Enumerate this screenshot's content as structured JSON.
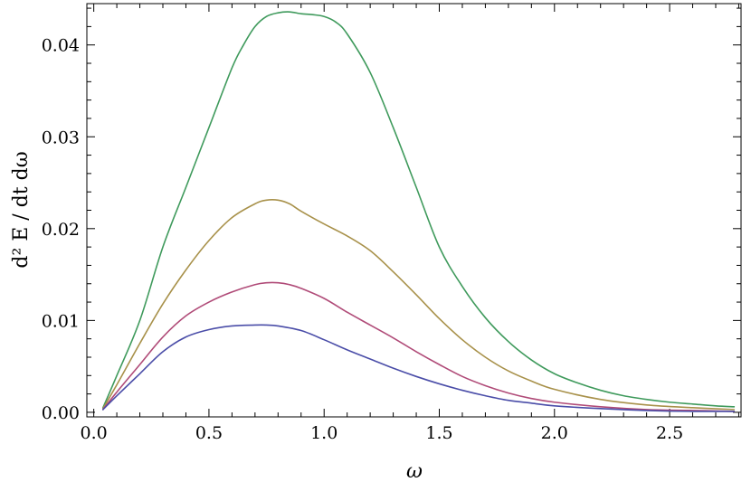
{
  "chart_data": {
    "type": "line",
    "xlabel": "ω",
    "ylabel": "d² E / dt dω",
    "xlim": [
      -0.03,
      2.81
    ],
    "ylim": [
      -0.0005,
      0.0445
    ],
    "xticks": [
      {
        "v": 0.0,
        "label": "0.0"
      },
      {
        "v": 0.5,
        "label": "0.5"
      },
      {
        "v": 1.0,
        "label": "1.0"
      },
      {
        "v": 1.5,
        "label": "1.5"
      },
      {
        "v": 2.0,
        "label": "2.0"
      },
      {
        "v": 2.5,
        "label": "2.5"
      }
    ],
    "yticks": [
      {
        "v": 0.0,
        "label": "0.00"
      },
      {
        "v": 0.01,
        "label": "0.01"
      },
      {
        "v": 0.02,
        "label": "0.02"
      },
      {
        "v": 0.03,
        "label": "0.03"
      },
      {
        "v": 0.04,
        "label": "0.04"
      }
    ],
    "grid": false,
    "series": [
      {
        "color": "#3f9a5c",
        "x": [
          0.04,
          0.1,
          0.2,
          0.3,
          0.4,
          0.5,
          0.6,
          0.65,
          0.7,
          0.75,
          0.8,
          0.85,
          0.9,
          0.95,
          1.0,
          1.05,
          1.1,
          1.2,
          1.3,
          1.4,
          1.5,
          1.6,
          1.7,
          1.8,
          1.9,
          2.0,
          2.1,
          2.2,
          2.3,
          2.4,
          2.5,
          2.6,
          2.7,
          2.78
        ],
        "y": [
          0.0005,
          0.004,
          0.01,
          0.018,
          0.0245,
          0.031,
          0.0375,
          0.04,
          0.042,
          0.0431,
          0.0435,
          0.0436,
          0.0434,
          0.0433,
          0.0431,
          0.0425,
          0.0412,
          0.037,
          0.031,
          0.0245,
          0.018,
          0.0137,
          0.0103,
          0.0077,
          0.0057,
          0.0042,
          0.0032,
          0.0024,
          0.0018,
          0.0014,
          0.0011,
          0.0009,
          0.0007,
          0.0006
        ]
      },
      {
        "color": "#a8914a",
        "x": [
          0.04,
          0.1,
          0.2,
          0.3,
          0.4,
          0.5,
          0.6,
          0.7,
          0.75,
          0.8,
          0.85,
          0.9,
          1.0,
          1.1,
          1.2,
          1.3,
          1.4,
          1.5,
          1.6,
          1.7,
          1.8,
          1.9,
          2.0,
          2.2,
          2.4,
          2.6,
          2.78
        ],
        "y": [
          0.0004,
          0.003,
          0.0075,
          0.0118,
          0.0155,
          0.0187,
          0.0212,
          0.0227,
          0.0231,
          0.0231,
          0.0227,
          0.0219,
          0.0205,
          0.0192,
          0.0176,
          0.0153,
          0.0128,
          0.0102,
          0.0079,
          0.006,
          0.0045,
          0.0034,
          0.0025,
          0.0014,
          0.0008,
          0.0005,
          0.0003
        ]
      },
      {
        "color": "#b04b78",
        "x": [
          0.04,
          0.1,
          0.2,
          0.3,
          0.4,
          0.5,
          0.6,
          0.7,
          0.75,
          0.8,
          0.85,
          0.9,
          1.0,
          1.1,
          1.2,
          1.3,
          1.4,
          1.5,
          1.6,
          1.7,
          1.8,
          1.9,
          2.0,
          2.2,
          2.4,
          2.6,
          2.78
        ],
        "y": [
          0.0003,
          0.0022,
          0.0052,
          0.0082,
          0.0105,
          0.012,
          0.0131,
          0.0139,
          0.0141,
          0.0141,
          0.0139,
          0.0135,
          0.0124,
          0.0109,
          0.0095,
          0.0081,
          0.0066,
          0.0052,
          0.0039,
          0.0029,
          0.0021,
          0.0015,
          0.0011,
          0.0006,
          0.0003,
          0.0002,
          0.0001
        ]
      },
      {
        "color": "#4a4da8",
        "x": [
          0.04,
          0.1,
          0.2,
          0.3,
          0.4,
          0.5,
          0.6,
          0.7,
          0.75,
          0.8,
          0.9,
          1.0,
          1.1,
          1.2,
          1.3,
          1.4,
          1.5,
          1.6,
          1.7,
          1.8,
          1.9,
          2.0,
          2.2,
          2.4,
          2.6,
          2.78
        ],
        "y": [
          0.0003,
          0.0018,
          0.0042,
          0.0066,
          0.0082,
          0.009,
          0.0094,
          0.0095,
          0.0095,
          0.0094,
          0.0089,
          0.0079,
          0.0068,
          0.0058,
          0.0048,
          0.0039,
          0.0031,
          0.0024,
          0.0018,
          0.0013,
          0.001,
          0.0007,
          0.0004,
          0.0002,
          0.0001,
          0.0001
        ]
      }
    ]
  }
}
